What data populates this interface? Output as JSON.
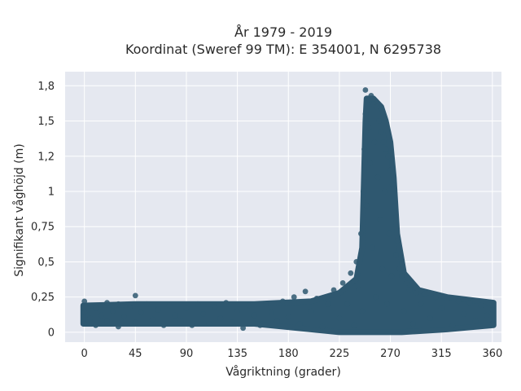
{
  "chart_data": {
    "type": "scatter",
    "title_line1": "År 1979 - 2019",
    "title_line2": "Koordinat (Sweref 99 TM): E 354001, N 6295738",
    "xlabel": "Vågriktning (grader)",
    "ylabel": "Signifikant våghöjd (m)",
    "xlim": [
      -17,
      368
    ],
    "ylim": [
      -0.07,
      1.85
    ],
    "x_ticks": [
      0,
      45,
      90,
      135,
      180,
      225,
      270,
      315,
      360
    ],
    "x_tick_labels": [
      "0",
      "45",
      "90",
      "135",
      "180",
      "225",
      "270",
      "315",
      "360"
    ],
    "y_ticks": [
      0,
      0.25,
      0.5,
      0.75,
      1,
      1.25,
      1.5,
      1.75
    ],
    "y_tick_labels": [
      "0",
      "0,25",
      "0,5",
      "0,75",
      "1",
      "1,2",
      "1,5",
      "1,8"
    ],
    "grid": true,
    "point_color": "#2f5870",
    "background_color": "#e5e8f0",
    "series": [
      {
        "values": [
          {
            "x": 0,
            "y": 0.14
          },
          {
            "x": 0,
            "y": 0.06
          },
          {
            "x": 0,
            "y": 0.22
          },
          {
            "x": 5,
            "y": 0.1
          },
          {
            "x": 5,
            "y": 0.19
          },
          {
            "x": 10,
            "y": 0.05
          },
          {
            "x": 10,
            "y": 0.17
          },
          {
            "x": 15,
            "y": 0.12
          },
          {
            "x": 20,
            "y": 0.21
          },
          {
            "x": 20,
            "y": 0.08
          },
          {
            "x": 25,
            "y": 0.15
          },
          {
            "x": 30,
            "y": 0.04
          },
          {
            "x": 30,
            "y": 0.2
          },
          {
            "x": 35,
            "y": 0.11
          },
          {
            "x": 40,
            "y": 0.18
          },
          {
            "x": 45,
            "y": 0.07
          },
          {
            "x": 45,
            "y": 0.26
          },
          {
            "x": 50,
            "y": 0.14
          },
          {
            "x": 55,
            "y": 0.2
          },
          {
            "x": 60,
            "y": 0.09
          },
          {
            "x": 65,
            "y": 0.16
          },
          {
            "x": 70,
            "y": 0.05
          },
          {
            "x": 75,
            "y": 0.19
          },
          {
            "x": 80,
            "y": 0.12
          },
          {
            "x": 85,
            "y": 0.08
          },
          {
            "x": 90,
            "y": 0.17
          },
          {
            "x": 95,
            "y": 0.05
          },
          {
            "x": 100,
            "y": 0.2
          },
          {
            "x": 105,
            "y": 0.13
          },
          {
            "x": 110,
            "y": 0.06
          },
          {
            "x": 115,
            "y": 0.18
          },
          {
            "x": 120,
            "y": 0.1
          },
          {
            "x": 125,
            "y": 0.21
          },
          {
            "x": 130,
            "y": 0.07
          },
          {
            "x": 135,
            "y": 0.15
          },
          {
            "x": 140,
            "y": 0.03
          },
          {
            "x": 145,
            "y": 0.19
          },
          {
            "x": 150,
            "y": 0.12
          },
          {
            "x": 155,
            "y": 0.05
          },
          {
            "x": 160,
            "y": 0.2
          },
          {
            "x": 165,
            "y": 0.14
          },
          {
            "x": 170,
            "y": 0.08
          },
          {
            "x": 175,
            "y": 0.22
          },
          {
            "x": 180,
            "y": 0.11
          },
          {
            "x": 185,
            "y": 0.25
          },
          {
            "x": 190,
            "y": 0.06
          },
          {
            "x": 195,
            "y": 0.29
          },
          {
            "x": 200,
            "y": 0.15
          },
          {
            "x": 205,
            "y": 0.24
          },
          {
            "x": 210,
            "y": 0.04
          },
          {
            "x": 215,
            "y": 0.2
          },
          {
            "x": 220,
            "y": 0.3
          },
          {
            "x": 225,
            "y": 0.1
          },
          {
            "x": 228,
            "y": 0.35
          },
          {
            "x": 232,
            "y": 0.2
          },
          {
            "x": 235,
            "y": 0.42
          },
          {
            "x": 238,
            "y": 0.05
          },
          {
            "x": 240,
            "y": 0.5
          },
          {
            "x": 242,
            "y": 0.3
          },
          {
            "x": 244,
            "y": 0.7
          },
          {
            "x": 245,
            "y": 0.15
          },
          {
            "x": 246,
            "y": 1.0
          },
          {
            "x": 247,
            "y": 1.3
          },
          {
            "x": 248,
            "y": 1.55
          },
          {
            "x": 248,
            "y": 1.72
          },
          {
            "x": 249,
            "y": 0.9
          },
          {
            "x": 250,
            "y": 1.65
          },
          {
            "x": 251,
            "y": 1.45
          },
          {
            "x": 252,
            "y": 1.2
          },
          {
            "x": 253,
            "y": 1.68
          },
          {
            "x": 254,
            "y": 0.6
          },
          {
            "x": 255,
            "y": 1.62
          },
          {
            "x": 256,
            "y": 1.35
          },
          {
            "x": 257,
            "y": 0.25
          },
          {
            "x": 258,
            "y": 1.6
          },
          {
            "x": 259,
            "y": 1.1
          },
          {
            "x": 260,
            "y": 1.5
          },
          {
            "x": 261,
            "y": 0.8
          },
          {
            "x": 262,
            "y": 1.42
          },
          {
            "x": 263,
            "y": 0.45
          },
          {
            "x": 264,
            "y": 1.35
          },
          {
            "x": 265,
            "y": 1.0
          },
          {
            "x": 266,
            "y": 1.3
          },
          {
            "x": 267,
            "y": 0.2
          },
          {
            "x": 268,
            "y": 1.25
          },
          {
            "x": 269,
            "y": 0.7
          },
          {
            "x": 270,
            "y": 1.15
          },
          {
            "x": 271,
            "y": 0.4
          },
          {
            "x": 272,
            "y": 1.05
          },
          {
            "x": 273,
            "y": 0.85
          },
          {
            "x": 274,
            "y": 0.9
          },
          {
            "x": 275,
            "y": 0.55
          },
          {
            "x": 276,
            "y": 0.65
          },
          {
            "x": 278,
            "y": 0.45
          },
          {
            "x": 280,
            "y": 0.4
          },
          {
            "x": 282,
            "y": 0.15
          },
          {
            "x": 284,
            "y": 0.35
          },
          {
            "x": 287,
            "y": 0.3
          },
          {
            "x": 290,
            "y": 0.06
          },
          {
            "x": 293,
            "y": 0.28
          },
          {
            "x": 297,
            "y": 0.2
          },
          {
            "x": 300,
            "y": 0.27
          },
          {
            "x": 305,
            "y": 0.1
          },
          {
            "x": 310,
            "y": 0.25
          },
          {
            "x": 315,
            "y": 0.17
          },
          {
            "x": 320,
            "y": 0.24
          },
          {
            "x": 325,
            "y": 0.05
          },
          {
            "x": 330,
            "y": 0.22
          },
          {
            "x": 335,
            "y": 0.13
          },
          {
            "x": 340,
            "y": 0.21
          },
          {
            "x": 345,
            "y": 0.08
          },
          {
            "x": 350,
            "y": 0.19
          },
          {
            "x": 355,
            "y": 0.12
          },
          {
            "x": 360,
            "y": 0.16
          },
          {
            "x": 360,
            "y": 0.06
          }
        ]
      }
    ],
    "density_band": {
      "description_ref": "dense scatter region",
      "upper": [
        {
          "x": -1,
          "y": 0.19
        },
        {
          "x": 45,
          "y": 0.2
        },
        {
          "x": 150,
          "y": 0.2
        },
        {
          "x": 200,
          "y": 0.22
        },
        {
          "x": 225,
          "y": 0.28
        },
        {
          "x": 240,
          "y": 0.38
        },
        {
          "x": 245,
          "y": 0.6
        },
        {
          "x": 247,
          "y": 1.2
        },
        {
          "x": 248,
          "y": 1.5
        },
        {
          "x": 249,
          "y": 1.66
        },
        {
          "x": 255,
          "y": 1.66
        },
        {
          "x": 262,
          "y": 1.6
        },
        {
          "x": 266,
          "y": 1.5
        },
        {
          "x": 270,
          "y": 1.35
        },
        {
          "x": 273,
          "y": 1.1
        },
        {
          "x": 276,
          "y": 0.7
        },
        {
          "x": 282,
          "y": 0.42
        },
        {
          "x": 295,
          "y": 0.3
        },
        {
          "x": 320,
          "y": 0.25
        },
        {
          "x": 361,
          "y": 0.21
        }
      ],
      "lower": [
        {
          "x": 361,
          "y": 0.05
        },
        {
          "x": 320,
          "y": 0.02
        },
        {
          "x": 280,
          "y": 0.0
        },
        {
          "x": 250,
          "y": 0.0
        },
        {
          "x": 225,
          "y": 0.0
        },
        {
          "x": 200,
          "y": 0.02
        },
        {
          "x": 150,
          "y": 0.06
        },
        {
          "x": 45,
          "y": 0.06
        },
        {
          "x": -1,
          "y": 0.06
        }
      ]
    }
  }
}
